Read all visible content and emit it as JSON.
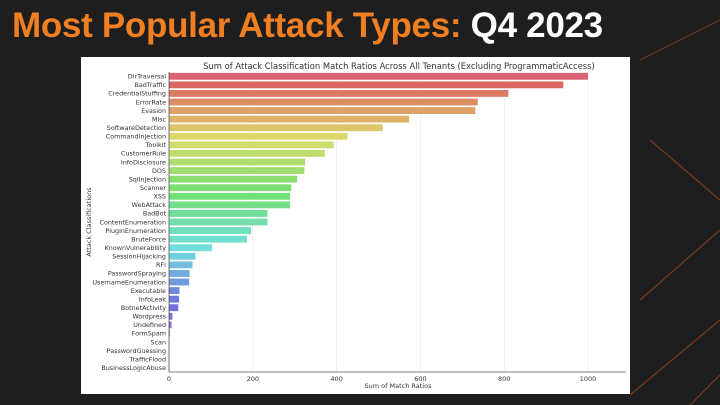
{
  "slide": {
    "title_main": "Most Popular Attack Types:",
    "title_highlight": "Q4 2023",
    "colors": {
      "background": "#1e1e1e",
      "title_accent": "#f07f22",
      "title_highlight": "#ffffff",
      "decor_lines": "#7a3a20"
    }
  },
  "chart_data": {
    "type": "bar",
    "orientation": "horizontal",
    "title": "Sum of Attack Classification Match Ratios Across All Tenants (Excluding ProgrammaticAccess)",
    "xlabel": "Sum of Match Ratios",
    "ylabel": "Attack Classifications",
    "xlim": [
      0,
      1040
    ],
    "xticks": [
      0,
      200,
      400,
      600,
      800,
      1000
    ],
    "grid": "vertical",
    "palette": "husl gradient (pink → orange → olive → green → teal → blue → purple → magenta)",
    "categories": [
      "DirTraversal",
      "BadTraffic",
      "CredentialStuffing",
      "ErrorRate",
      "Evasion",
      "Misc",
      "SoftwareDetection",
      "CommandInjection",
      "Toolkit",
      "CustomerRule",
      "InfoDisclosure",
      "DOS",
      "SqlInjection",
      "Scanner",
      "XSS",
      "WebAttack",
      "BadBot",
      "ContentEnumeration",
      "PluginEnumeration",
      "BruteForce",
      "KnownVulnerability",
      "SessionHijacking",
      "RFI",
      "PasswordSpraying",
      "UsernameEnumeration",
      "Executable",
      "InfoLeak",
      "BotnetActivity",
      "Wordpress",
      "Undefined",
      "FormSpam",
      "Scan",
      "PasswordGuessing",
      "TrafficFlood",
      "BusinessLogicAbuse"
    ],
    "values": [
      1000,
      941,
      810,
      737,
      731,
      573,
      510,
      426,
      393,
      372,
      325,
      323,
      306,
      292,
      289,
      289,
      235,
      235,
      196,
      186,
      103,
      63,
      56,
      49,
      48,
      25,
      24,
      22,
      8,
      6,
      2,
      1,
      1,
      0.5,
      0.3
    ]
  }
}
